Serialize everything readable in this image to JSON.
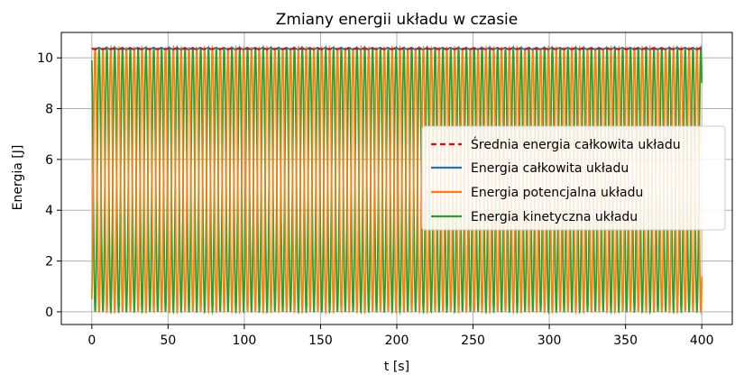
{
  "chart_data": {
    "type": "line",
    "title": "Zmiany energii układu w czasie",
    "xlabel": "t [s]",
    "ylabel": "Energia [J]",
    "xlim": [
      -20,
      420
    ],
    "ylim": [
      -0.5,
      11.0
    ],
    "xticks": [
      0,
      50,
      100,
      150,
      200,
      250,
      300,
      350,
      400
    ],
    "yticks": [
      0,
      2,
      4,
      6,
      8,
      10
    ],
    "grid": true,
    "legend_position": "center-right",
    "oscillation": {
      "t_start": 0,
      "t_end": 400,
      "period_s": 10.25,
      "energy_max": 10.4
    },
    "series": [
      {
        "name": "Średnia energia całkowita układu",
        "style": "dashed",
        "color": "#ff0000",
        "value": 10.35
      },
      {
        "name": "Energia całkowita układu",
        "style": "solid",
        "color": "#1f77b4",
        "value_min": 10.33,
        "value_max": 10.4
      },
      {
        "name": "Energia potencjalna układu",
        "style": "solid",
        "color": "#ff7f0e",
        "value_min": 0.0,
        "value_max": 10.4,
        "value_at_t0": 0.5
      },
      {
        "name": "Energia kinetyczna układu",
        "style": "solid",
        "color": "#2ca02c",
        "value_min": 0.0,
        "value_max": 10.4,
        "value_at_t0": 9.9
      }
    ]
  }
}
